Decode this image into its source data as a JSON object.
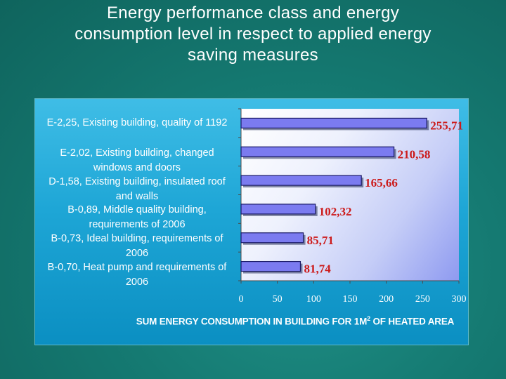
{
  "title_lines": [
    "Energy performance class and energy",
    "consumption level in respect to applied energy",
    "saving measures"
  ],
  "chart_data": {
    "type": "bar",
    "orientation": "horizontal",
    "categories": [
      [
        "E-2,25, Existing building, quality of 1192"
      ],
      [
        "E-2,02, Existing building, changed",
        "windows and doors"
      ],
      [
        "D-1,58, Existing building, insulated roof",
        "and walls"
      ],
      [
        "B-0,89, Middle quality building,",
        "requirements of 2006"
      ],
      [
        "B-0,73, Ideal building, requirements of",
        "2006"
      ],
      [
        "B-0,70, Heat pump and requirements of",
        "2006"
      ]
    ],
    "values": [
      255.71,
      210.58,
      165.66,
      102.32,
      85.71,
      81.74
    ],
    "data_labels": [
      "255,71",
      "210,58",
      "165,66",
      "102,32",
      "85,71",
      "81,74"
    ],
    "x_ticks": [
      "0",
      "50",
      "100",
      "150",
      "200",
      "250",
      "300"
    ],
    "xlim": [
      0,
      300
    ],
    "xlabel_main": "SUM ENERGY CONSUMPTION IN BUILDING FOR 1M",
    "xlabel_sup": "2",
    "xlabel_end": " OF HEATED AREA",
    "bar_color": "#7b7bf0",
    "data_label_color": "#cc1a1a",
    "grid": false,
    "legend": "none"
  }
}
